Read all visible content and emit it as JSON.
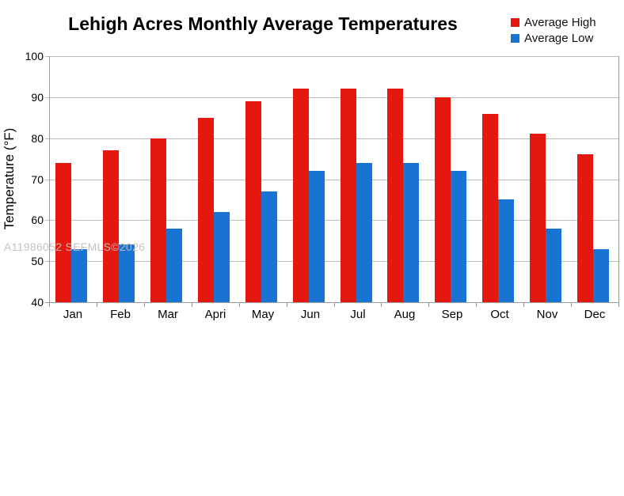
{
  "watermark": "A11986052 SEFMLS©2026",
  "colors": {
    "average_high": "#E5180F",
    "average_low": "#1873D2",
    "gridline": "#BDBDBD",
    "axis": "#9A9A9A",
    "background": "#FFFFFF"
  },
  "chart_data": {
    "type": "bar",
    "title": "Lehigh Acres Monthly Average Temperatures",
    "xlabel": "",
    "ylabel": "Temperature (°F)",
    "ylim": [
      40,
      100
    ],
    "yticks": [
      40,
      50,
      60,
      70,
      80,
      90,
      100
    ],
    "grid": true,
    "legend_position": "top-right",
    "categories": [
      "Jan",
      "Feb",
      "Mar",
      "Apri",
      "May",
      "Jun",
      "Jul",
      "Aug",
      "Sep",
      "Oct",
      "Nov",
      "Dec"
    ],
    "series": [
      {
        "name": "Average High",
        "color": "#E5180F",
        "values": [
          74,
          77,
          80,
          85,
          89,
          92,
          92,
          92,
          90,
          86,
          81,
          76
        ]
      },
      {
        "name": "Average Low",
        "color": "#1873D2",
        "values": [
          53,
          54,
          58,
          62,
          67,
          72,
          74,
          74,
          72,
          65,
          58,
          53
        ]
      }
    ]
  }
}
